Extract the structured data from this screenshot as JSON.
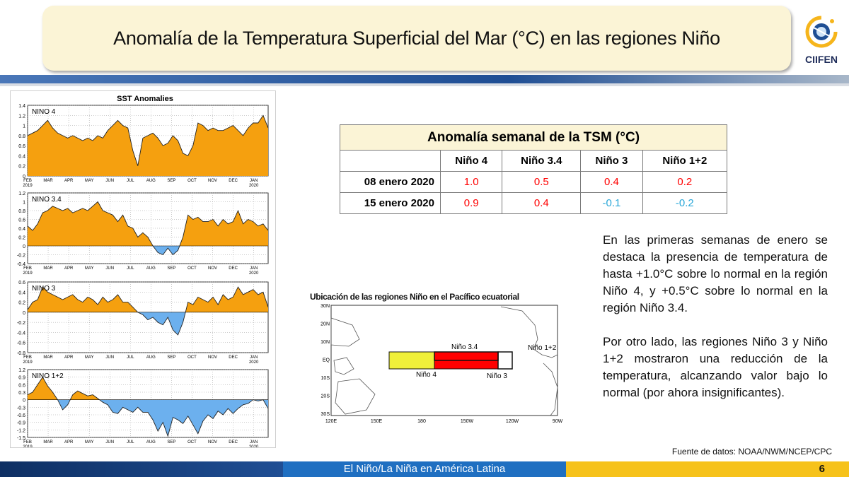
{
  "header": {
    "title": "Anomalía de la Temperatura Superficial del Mar (°C) en las regiones Niño",
    "logo_text": "CIIFEN"
  },
  "table": {
    "caption": "Anomalía semanal de la TSM (°C)",
    "columns": [
      "Niño 4",
      "Niño 3.4",
      "Niño 3",
      "Niño 1+2"
    ],
    "rows": [
      {
        "date": "08 enero 2020",
        "values": [
          "1.0",
          "0.5",
          "0.4",
          "0.2"
        ]
      },
      {
        "date": "15 enero 2020",
        "values": [
          "0.9",
          "0.4",
          "-0.1",
          "-0.2"
        ]
      }
    ]
  },
  "description": {
    "p1": "En las primeras semanas de enero se destaca la presencia de temperatura de hasta +1.0°C sobre lo normal en la región Niño 4, y +0.5°C sobre lo normal en la región Niño 3.4.",
    "p2": "Por otro lado, las regiones Niño 3 y Niño 1+2 mostraron una reducción de la temperatura, alcanzando valor bajo lo normal (por ahora insignificantes)."
  },
  "map": {
    "title": "Ubicación de las regiones Niño en el Pacífico ecuatorial",
    "lat_labels": [
      "30N",
      "20N",
      "10N",
      "EQ",
      "10S",
      "20S",
      "30S"
    ],
    "lon_labels": [
      "120E",
      "150E",
      "180",
      "150W",
      "120W",
      "90W"
    ],
    "region_labels": [
      "Niño 3.4",
      "Niño 1+2",
      "Niño 4",
      "Niño 3"
    ]
  },
  "source": "Fuente de datos: NOAA/NWM/NCEP/CPC",
  "footer": {
    "text": "El Niño/La Niña en América Latina",
    "page": "6"
  },
  "colors": {
    "positive": "#f5a00f",
    "negative": "#6cb0ee",
    "title_bg": "#fbf4d6",
    "hot": "#ff0000",
    "warm": "#f0f03a"
  },
  "chart_data": {
    "type": "area",
    "title": "SST Anomalies",
    "months": [
      "FEB",
      "MAR",
      "APR",
      "MAY",
      "JUN",
      "JUL",
      "AUG",
      "SEP",
      "OCT",
      "NOV",
      "DEC",
      "JAN"
    ],
    "year_labels": [
      "2019",
      "2020"
    ],
    "series": [
      {
        "name": "NINO  4",
        "ylim": [
          0,
          1.4
        ],
        "ticks": [
          "1.4",
          "1.2",
          "1",
          "0.8",
          "0.6",
          "0.4",
          "0.2",
          "0"
        ],
        "values": [
          0.8,
          0.85,
          0.9,
          1.0,
          1.1,
          0.95,
          0.85,
          0.8,
          0.75,
          0.8,
          0.75,
          0.7,
          0.75,
          0.7,
          0.8,
          0.75,
          0.9,
          1.0,
          1.1,
          1.0,
          0.95,
          0.5,
          0.2,
          0.75,
          0.8,
          0.85,
          0.75,
          0.6,
          0.65,
          0.8,
          0.7,
          0.45,
          0.4,
          0.6,
          1.05,
          1.0,
          0.9,
          0.95,
          0.9,
          0.9,
          0.95,
          1.0,
          0.9,
          0.8,
          0.95,
          1.05,
          1.05,
          1.2,
          0.95
        ]
      },
      {
        "name": "NINO  3.4",
        "ylim": [
          -0.4,
          1.2
        ],
        "ticks": [
          "1.2",
          "1",
          "0.8",
          "0.6",
          "0.4",
          "0.2",
          "0",
          "-0.2",
          "-0.4"
        ],
        "values": [
          0.45,
          0.35,
          0.5,
          0.75,
          0.8,
          0.9,
          0.85,
          0.8,
          0.85,
          0.75,
          0.8,
          0.85,
          0.8,
          0.9,
          1.0,
          0.8,
          0.75,
          0.7,
          0.55,
          0.7,
          0.45,
          0.4,
          0.2,
          0.3,
          0.2,
          0.0,
          -0.15,
          -0.2,
          -0.05,
          -0.2,
          -0.1,
          0.2,
          0.7,
          0.6,
          0.65,
          0.55,
          0.55,
          0.6,
          0.45,
          0.6,
          0.5,
          0.55,
          0.8,
          0.5,
          0.6,
          0.55,
          0.45,
          0.5,
          0.35
        ]
      },
      {
        "name": "NINO  3",
        "ylim": [
          -0.8,
          0.6
        ],
        "ticks": [
          "0.6",
          "0.4",
          "0.2",
          "0",
          "-0.2",
          "-0.4",
          "-0.6",
          "-0.8"
        ],
        "values": [
          0.05,
          0.2,
          0.25,
          0.5,
          0.4,
          0.35,
          0.3,
          0.25,
          0.3,
          0.35,
          0.25,
          0.2,
          0.3,
          0.25,
          0.15,
          0.3,
          0.2,
          0.25,
          0.35,
          0.2,
          0.2,
          0.1,
          0.0,
          -0.05,
          -0.15,
          -0.1,
          -0.2,
          -0.25,
          -0.1,
          -0.35,
          -0.45,
          -0.2,
          0.2,
          0.15,
          0.3,
          0.25,
          0.2,
          0.3,
          0.15,
          0.35,
          0.25,
          0.3,
          0.5,
          0.35,
          0.4,
          0.45,
          0.35,
          0.4,
          0.1
        ]
      },
      {
        "name": "NINO  1+2",
        "ylim": [
          -1.5,
          1.2
        ],
        "ticks": [
          "1.2",
          "0.9",
          "0.6",
          "0.3",
          "0",
          "-0.3",
          "-0.6",
          "-0.9",
          "-1.2",
          "-1.5"
        ],
        "values": [
          0.2,
          0.3,
          0.6,
          0.9,
          0.55,
          0.3,
          0.0,
          -0.4,
          -0.2,
          0.2,
          0.35,
          0.25,
          0.15,
          0.2,
          0.05,
          -0.1,
          -0.2,
          -0.5,
          -0.55,
          -0.3,
          -0.4,
          -0.5,
          -0.3,
          -0.5,
          -0.5,
          -0.8,
          -1.25,
          -0.9,
          -1.45,
          -0.7,
          -0.8,
          -0.95,
          -0.65,
          -1.0,
          -1.35,
          -0.85,
          -0.6,
          -0.75,
          -0.45,
          -0.6,
          -0.35,
          -0.55,
          -0.35,
          -0.2,
          -0.15,
          0.0,
          -0.05,
          0.0,
          -0.35
        ]
      }
    ]
  }
}
